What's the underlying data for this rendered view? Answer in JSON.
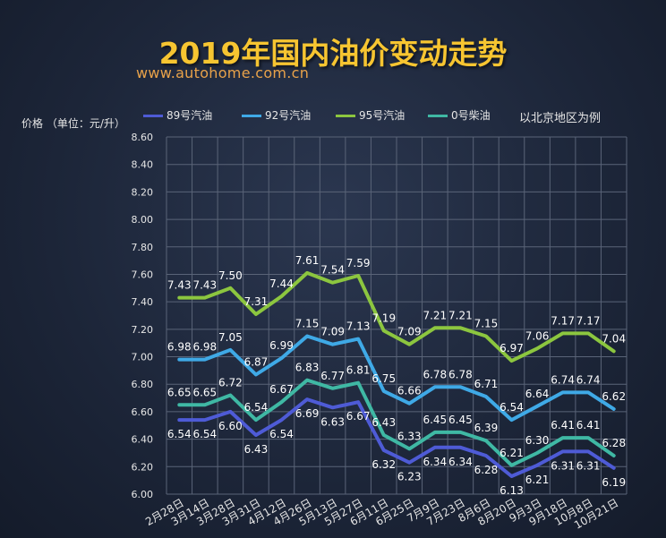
{
  "title": "2019年国内油价变动走势",
  "subtitle": "www.autohome.com.cn",
  "unit_label": "价格 （单位：元/升）",
  "note": "以北京地区为例",
  "chart_data": {
    "type": "line",
    "x": [
      "2月28日",
      "3月14日",
      "3月28日",
      "3月31日",
      "4月12日",
      "4月26日",
      "5月13日",
      "5月27日",
      "6月11日",
      "6月25日",
      "7月9日",
      "7月23日",
      "8月6日",
      "8月20日",
      "9月3日",
      "9月18日",
      "10月8日",
      "10月21日"
    ],
    "ylim": [
      6.0,
      8.6
    ],
    "yticks": [
      "6.00",
      "6.20",
      "6.40",
      "6.60",
      "6.80",
      "7.00",
      "7.20",
      "7.40",
      "7.60",
      "7.80",
      "8.00",
      "8.20",
      "8.40",
      "8.60"
    ],
    "grid": true,
    "legend_position": "top",
    "series": [
      {
        "name": "89号汽油",
        "color": "#4e5bd6",
        "values": [
          6.54,
          6.54,
          6.6,
          6.43,
          6.54,
          6.69,
          6.63,
          6.67,
          6.32,
          6.23,
          6.34,
          6.34,
          6.28,
          6.13,
          6.21,
          6.31,
          6.31,
          6.19
        ],
        "labels": [
          "6.54",
          "6.54",
          "6.60",
          "6.43",
          "6.54",
          "6.69",
          "6.63",
          "6.67",
          "6.32",
          "6.23",
          "6.34",
          "6.34",
          "6.28",
          "6.13",
          "6.21",
          "6.31",
          "6.31",
          "6.19"
        ]
      },
      {
        "name": "92号汽油",
        "color": "#3fa9e6",
        "values": [
          6.98,
          6.98,
          7.05,
          6.87,
          6.99,
          7.15,
          7.09,
          7.13,
          6.75,
          6.66,
          6.78,
          6.78,
          6.71,
          6.54,
          6.64,
          6.74,
          6.74,
          6.62
        ],
        "labels": [
          "6.98",
          "6.98",
          "7.05",
          "6.87",
          "6.99",
          "7.15",
          "7.09",
          "7.13",
          "6.75",
          "6.66",
          "6.78",
          "6.78",
          "6.71",
          "6.54",
          "6.64",
          "6.74",
          "6.74",
          "6.62"
        ]
      },
      {
        "name": "95号汽油",
        "color": "#8cc63f",
        "values": [
          7.43,
          7.43,
          7.5,
          7.31,
          7.44,
          7.61,
          7.54,
          7.59,
          7.19,
          7.09,
          7.21,
          7.21,
          7.15,
          6.97,
          7.06,
          7.17,
          7.17,
          7.04
        ],
        "labels": [
          "7.43",
          "7.43",
          "7.50",
          "7.31",
          "7.44",
          "7.61",
          "7.54",
          "7.59",
          "7.19",
          "7.09",
          "7.21",
          "7.21",
          "7.15",
          "6.97",
          "7.06",
          "7.17",
          "7.17",
          "7.04"
        ]
      },
      {
        "name": "0号柴油",
        "color": "#3fb8a4",
        "values": [
          6.65,
          6.65,
          6.72,
          6.54,
          6.67,
          6.83,
          6.77,
          6.81,
          6.43,
          6.33,
          6.45,
          6.45,
          6.39,
          6.21,
          6.3,
          6.41,
          6.41,
          6.28
        ],
        "labels": [
          "6.65",
          "6.65",
          "6.72",
          "6.54",
          "6.67",
          "6.83",
          "6.77",
          "6.81",
          "6.43",
          "6.33",
          "6.45",
          "6.45",
          "6.39",
          "6.21",
          "6.30",
          "6.41",
          "6.41",
          "6.28"
        ]
      }
    ]
  }
}
